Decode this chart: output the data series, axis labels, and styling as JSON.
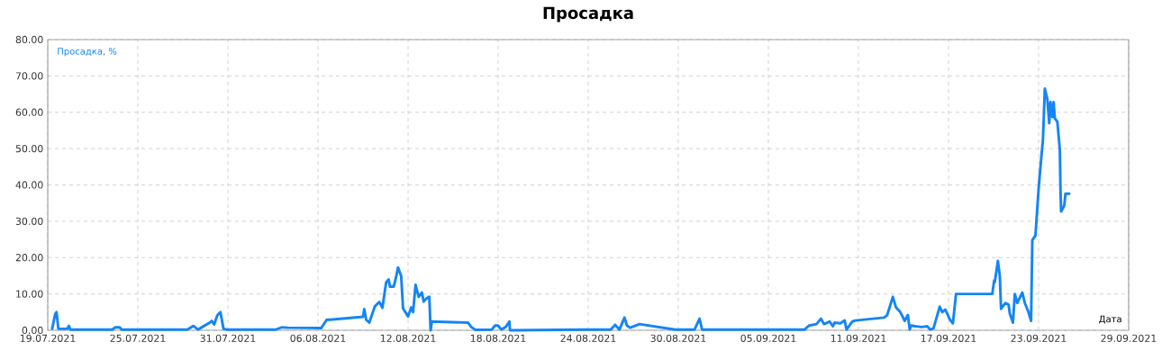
{
  "chart_data": {
    "type": "line",
    "title": "Просадка",
    "xlabel": "Дата",
    "x": [
      "2021-07-19T07:00",
      "2021-07-19T12:00",
      "2021-07-19T14:00",
      "2021-07-19T17:00",
      "2021-07-20T07:00",
      "2021-07-20T10:00",
      "2021-07-20T12:00",
      "2021-07-23T07:00",
      "2021-07-23T12:00",
      "2021-07-23T19:00",
      "2021-07-23T22:00",
      "2021-07-28T07:00",
      "2021-07-28T17:00",
      "2021-07-29T00:00",
      "2021-07-29T10:00",
      "2021-07-29T19:00",
      "2021-07-29T22:00",
      "2021-07-30T02:00",
      "2021-07-30T07:00",
      "2021-07-30T12:00",
      "2021-07-30T17:00",
      "2021-07-30T22:00",
      "2021-08-03T05:00",
      "2021-08-03T14:00",
      "2021-08-04T00:00",
      "2021-08-06T05:00",
      "2021-08-06T14:00",
      "2021-08-06T19:00",
      "2021-08-09T00:00",
      "2021-08-09T02:00",
      "2021-08-09T05:00",
      "2021-08-09T10:00",
      "2021-08-09T19:00",
      "2021-08-10T02:00",
      "2021-08-10T07:00",
      "2021-08-10T13:00",
      "2021-08-10T17:00",
      "2021-08-10T19:00",
      "2021-08-11T01:00",
      "2021-08-11T04:00",
      "2021-08-11T08:00",
      "2021-08-11T13:00",
      "2021-08-11T16:00",
      "2021-08-12T00:00",
      "2021-08-12T05:00",
      "2021-08-12T08:00",
      "2021-08-12T12:00",
      "2021-08-12T17:00",
      "2021-08-12T22:00",
      "2021-08-13T01:00",
      "2021-08-13T05:00",
      "2021-08-13T10:00",
      "2021-08-13T12:00",
      "2021-08-13T14:00",
      "2021-08-16T00:00",
      "2021-08-16T05:00",
      "2021-08-16T12:00",
      "2021-08-17T14:00",
      "2021-08-17T19:00",
      "2021-08-18T00:00",
      "2021-08-18T05:00",
      "2021-08-18T12:00",
      "2021-08-18T18:00",
      "2021-08-18T19:00",
      "2021-08-23T14:00",
      "2021-08-25T12:00",
      "2021-08-25T19:00",
      "2021-08-26T02:00",
      "2021-08-26T10:00",
      "2021-08-26T14:00",
      "2021-08-26T19:00",
      "2021-08-27T10:00",
      "2021-08-29T19:00",
      "2021-08-31T02:00",
      "2021-08-31T10:00",
      "2021-08-31T14:00",
      "2021-09-06T12:00",
      "2021-09-07T10:00",
      "2021-09-07T17:00",
      "2021-09-08T05:00",
      "2021-09-08T12:00",
      "2021-09-08T17:00",
      "2021-09-09T02:00",
      "2021-09-09T07:00",
      "2021-09-09T10:00",
      "2021-09-09T19:00",
      "2021-09-10T02:00",
      "2021-09-10T05:00",
      "2021-09-10T14:00",
      "2021-09-10T19:00",
      "2021-09-12T17:00",
      "2021-09-12T22:00",
      "2021-09-13T07:00",
      "2021-09-13T12:00",
      "2021-09-13T19:00",
      "2021-09-14T02:00",
      "2021-09-14T07:00",
      "2021-09-14T10:00",
      "2021-09-14T12:00",
      "2021-09-15T05:00",
      "2021-09-15T14:00",
      "2021-09-15T19:00",
      "2021-09-16T00:00",
      "2021-09-16T10:00",
      "2021-09-16T14:00",
      "2021-09-16T19:00",
      "2021-09-17T02:00",
      "2021-09-17T07:00",
      "2021-09-17T12:00",
      "2021-09-19T22:00",
      "2021-09-20T01:00",
      "2021-09-20T02:00",
      "2021-09-20T07:00",
      "2021-09-20T10:00",
      "2021-09-20T12:00",
      "2021-09-20T19:00",
      "2021-09-21T00:00",
      "2021-09-21T02:00",
      "2021-09-21T07:00",
      "2021-09-21T10:00",
      "2021-09-21T14:00",
      "2021-09-21T22:00",
      "2021-09-22T02:00",
      "2021-09-22T07:00",
      "2021-09-22T12:00",
      "2021-09-22T14:00",
      "2021-09-22T19:00",
      "2021-09-23T00:00",
      "2021-09-23T02:00",
      "2021-09-23T05:00",
      "2021-09-23T07:00",
      "2021-09-23T10:00",
      "2021-09-23T14:00",
      "2021-09-23T17:00",
      "2021-09-23T19:00",
      "2021-09-23T22:00",
      "2021-09-24T00:00",
      "2021-09-24T02:00",
      "2021-09-24T06:00",
      "2021-09-24T10:00",
      "2021-09-24T11:00",
      "2021-09-24T12:00",
      "2021-09-24T17:00",
      "2021-09-24T19:00",
      "2021-09-25T01:00"
    ],
    "series": [
      {
        "name": "Просадка, %",
        "color": "#1485f5",
        "values": [
          0.4,
          4.5,
          5,
          0.4,
          0.4,
          1.2,
          0.2,
          0.2,
          0.8,
          0.8,
          0.2,
          0.2,
          1.2,
          0.2,
          1.2,
          2.1,
          2.6,
          1.6,
          4.1,
          5,
          0.4,
          0.2,
          0.2,
          0.8,
          0.7,
          0.6,
          2.9,
          2.9,
          3.7,
          5.8,
          2.9,
          2.1,
          6.6,
          7.8,
          6.2,
          13.2,
          14,
          12,
          12,
          14,
          17.3,
          14.9,
          6,
          3.8,
          6.3,
          5,
          12.5,
          9.2,
          10.4,
          7.9,
          8.7,
          9.2,
          0,
          2.4,
          2.1,
          0.9,
          0.1,
          0.2,
          1.3,
          1.3,
          0.2,
          0.9,
          2.4,
          0,
          0.2,
          0.2,
          1.5,
          0.2,
          3.5,
          1.3,
          0.7,
          1.7,
          0.2,
          0.2,
          3.2,
          0.2,
          0.2,
          0.2,
          1.3,
          1.7,
          3.2,
          1.7,
          2.4,
          1.1,
          2.1,
          1.9,
          2.7,
          0.2,
          2.4,
          2.7,
          3.5,
          4.2,
          9.2,
          6.3,
          5,
          2.6,
          4.2,
          0.2,
          1.3,
          0.9,
          1.1,
          0.2,
          0.5,
          6.5,
          5,
          5.7,
          3,
          1.9,
          10,
          10,
          13.7,
          13.3,
          19.1,
          14.9,
          5.9,
          7.5,
          7.1,
          4.6,
          2.1,
          10,
          7.5,
          10.4,
          7.5,
          5.4,
          2.6,
          24.8,
          26.1,
          38.9,
          43,
          48.8,
          52.5,
          66.5,
          63.6,
          57,
          62.8,
          58.7,
          62.8,
          58.3,
          57.4,
          49.6,
          38.9,
          32.7,
          34.3,
          37.6,
          37.6
        ]
      }
    ],
    "xlim": [
      "2021-07-19",
      "2021-09-29"
    ],
    "xticks": [
      {
        "value": "2021-07-19",
        "label": "19.07.2021"
      },
      {
        "value": "2021-07-25",
        "label": "25.07.2021"
      },
      {
        "value": "2021-07-31",
        "label": "31.07.2021"
      },
      {
        "value": "2021-08-06",
        "label": "06.08.2021"
      },
      {
        "value": "2021-08-12",
        "label": "12.08.2021"
      },
      {
        "value": "2021-08-18",
        "label": "18.08.2021"
      },
      {
        "value": "2021-08-24",
        "label": "24.08.2021"
      },
      {
        "value": "2021-08-30",
        "label": "30.08.2021"
      },
      {
        "value": "2021-09-05",
        "label": "05.09.2021"
      },
      {
        "value": "2021-09-11",
        "label": "11.09.2021"
      },
      {
        "value": "2021-09-17",
        "label": "17.09.2021"
      },
      {
        "value": "2021-09-23",
        "label": "23.09.2021"
      },
      {
        "value": "2021-09-29",
        "label": "29.09.2021"
      }
    ],
    "ylim": [
      0,
      80
    ],
    "yticks": [
      {
        "value": 0,
        "label": "0.00"
      },
      {
        "value": 10,
        "label": "10.00"
      },
      {
        "value": 20,
        "label": "20.00"
      },
      {
        "value": 30,
        "label": "30.00"
      },
      {
        "value": 40,
        "label": "40.00"
      },
      {
        "value": 50,
        "label": "50.00"
      },
      {
        "value": 60,
        "label": "60.00"
      },
      {
        "value": 70,
        "label": "70.00"
      },
      {
        "value": 80,
        "label": "80.00"
      }
    ],
    "grid": true,
    "legend": "top left",
    "marker": "none",
    "line_style": "solid"
  }
}
